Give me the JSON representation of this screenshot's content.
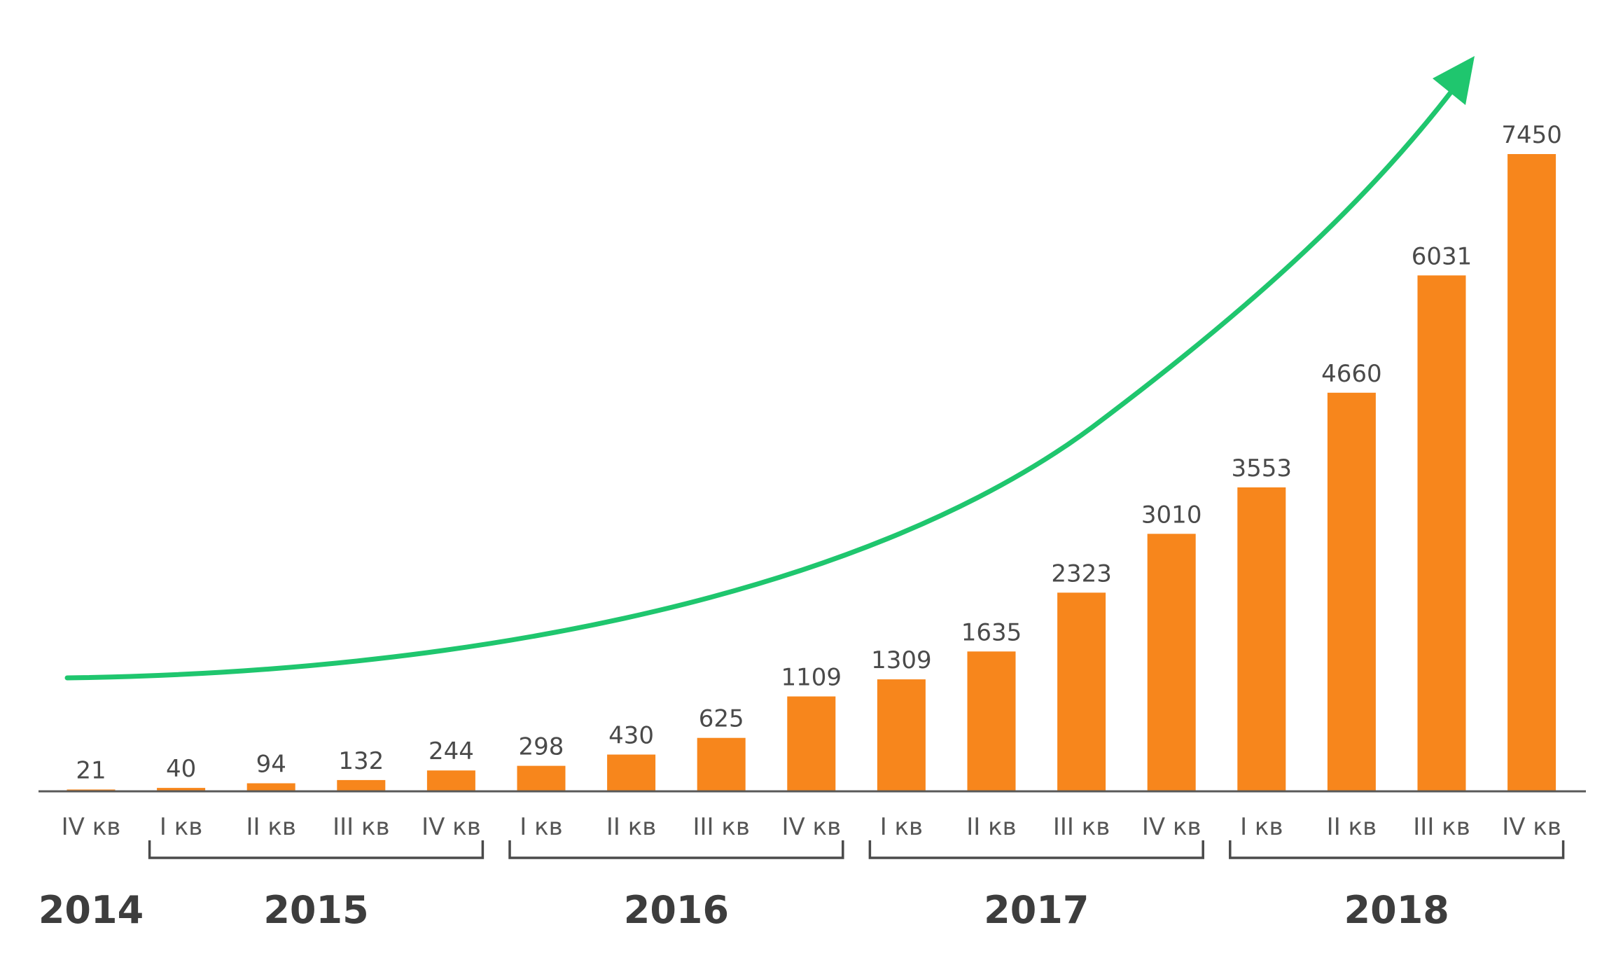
{
  "chart_data": {
    "type": "bar",
    "title": "",
    "xlabel": "",
    "ylabel": "",
    "ylim": [
      0,
      7450
    ],
    "grid": false,
    "legend": "none",
    "categories": [
      "IV кв",
      "I кв",
      "II кв",
      "III кв",
      "IV кв",
      "I кв",
      "II кв",
      "III кв",
      "IV кв",
      "I кв",
      "II кв",
      "III кв",
      "IV кв",
      "I кв",
      "II кв",
      "III кв",
      "IV кв"
    ],
    "years": [
      {
        "label": "2014",
        "from": 0,
        "to": 0,
        "bracket": false
      },
      {
        "label": "2015",
        "from": 1,
        "to": 4,
        "bracket": true
      },
      {
        "label": "2016",
        "from": 5,
        "to": 8,
        "bracket": true
      },
      {
        "label": "2017",
        "from": 9,
        "to": 12,
        "bracket": true
      },
      {
        "label": "2018",
        "from": 13,
        "to": 16,
        "bracket": true
      }
    ],
    "values": [
      21,
      40,
      94,
      132,
      244,
      298,
      430,
      625,
      1109,
      1309,
      1635,
      2323,
      3010,
      3553,
      4660,
      6031,
      7450
    ],
    "data_labels": [
      "21",
      "40",
      "94",
      "132",
      "244",
      "298",
      "430",
      "625",
      "1109",
      "1309",
      "1635",
      "2323",
      "3010",
      "3553",
      "4660",
      "6031",
      "7450"
    ],
    "trend_arrow": true,
    "colors": {
      "bar": "#f7861c",
      "trend": "#1fc66e",
      "axis": "#595959",
      "text": "#4a4a4a"
    }
  }
}
